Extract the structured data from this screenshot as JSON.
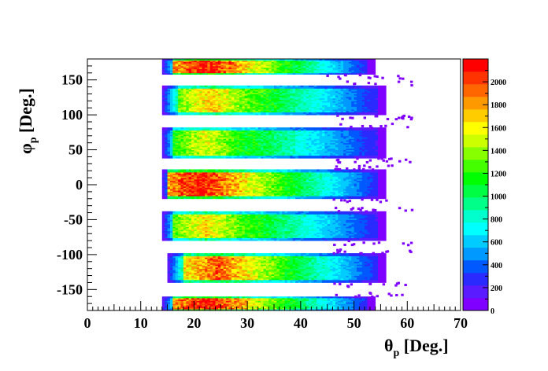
{
  "chart_data": {
    "type": "heatmap",
    "xlabel_main": "θ",
    "xlabel_sub": "p",
    "xlabel_unit": " [Deg.]",
    "ylabel_main": "φ",
    "ylabel_sub": "p",
    "ylabel_unit": " [Deg.]",
    "xlim": [
      0,
      70
    ],
    "ylim": [
      -180,
      180
    ],
    "x_ticks": [
      "0",
      "10",
      "20",
      "30",
      "40",
      "50",
      "60",
      "70"
    ],
    "y_ticks": [
      "-150",
      "-100",
      "-50",
      "0",
      "50",
      "100",
      "150"
    ],
    "z_range": [
      0,
      2200
    ],
    "z_ticks": [
      "0",
      "200",
      "400",
      "600",
      "800",
      "1000",
      "1200",
      "1400",
      "1600",
      "1800",
      "2000"
    ],
    "palette": [
      "#7f00ff",
      "#5a1bff",
      "#2a2aff",
      "#0059ff",
      "#0099ff",
      "#00ccff",
      "#00ffff",
      "#00ffcc",
      "#00ff88",
      "#00ff44",
      "#00ff00",
      "#44ff00",
      "#88ff00",
      "#ccff00",
      "#ffff00",
      "#ffcc00",
      "#ff9900",
      "#ff6600",
      "#ff3300",
      "#ff0000"
    ],
    "bands": [
      {
        "phi_min": 158,
        "phi_max": 180,
        "theta_min": 14,
        "theta_max": 54,
        "hot_center": 22,
        "peak": 2150
      },
      {
        "phi_min": 100,
        "phi_max": 142,
        "theta_min": 14,
        "theta_max": 56,
        "hot_center": 23,
        "peak": 1700
      },
      {
        "phi_min": 38,
        "phi_max": 82,
        "theta_min": 14,
        "theta_max": 56,
        "hot_center": 22,
        "peak": 1550
      },
      {
        "phi_min": -20,
        "phi_max": 22,
        "theta_min": 14,
        "theta_max": 56,
        "hot_center": 21,
        "peak": 2150
      },
      {
        "phi_min": -80,
        "phi_max": -38,
        "theta_min": 14,
        "theta_max": 56,
        "hot_center": 22,
        "peak": 1650
      },
      {
        "phi_min": -140,
        "phi_max": -98,
        "theta_min": 15,
        "theta_max": 56,
        "hot_center": 24,
        "peak": 1950
      },
      {
        "phi_min": -180,
        "phi_max": -160,
        "theta_min": 14,
        "theta_max": 54,
        "hot_center": 22,
        "peak": 2150
      }
    ]
  }
}
